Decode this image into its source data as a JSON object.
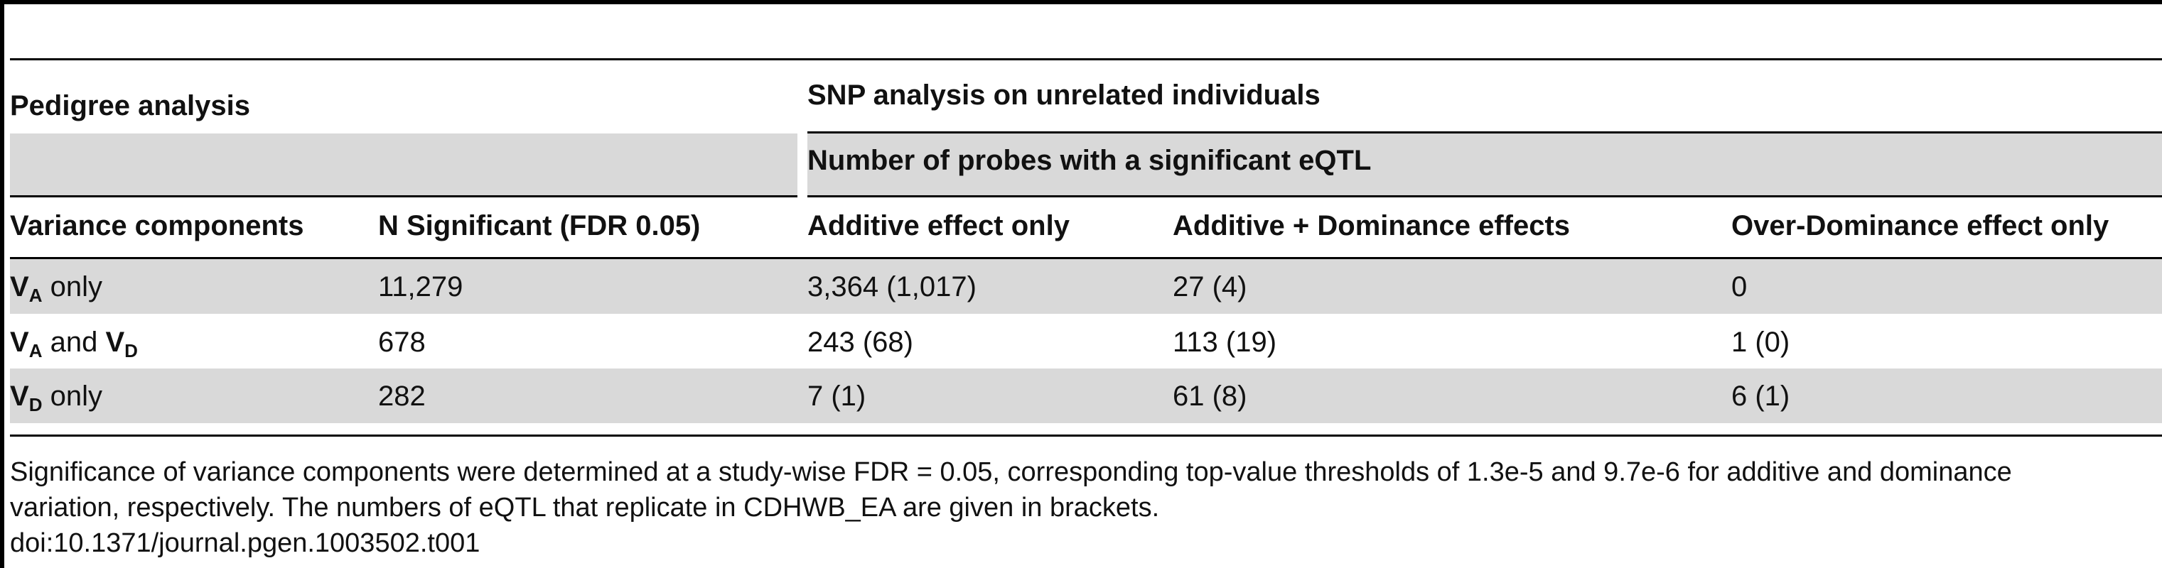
{
  "table": {
    "group_pedigree": "Pedigree analysis",
    "group_snp": "SNP analysis on unrelated individuals",
    "subgroup_snp": "Number of probes with a significant eQTL",
    "columns": [
      "Variance components",
      "N Significant (FDR 0.05)",
      "Additive effect only",
      "Additive + Dominance effects",
      "Over-Dominance effect only"
    ],
    "row_labels": [
      {
        "v1": "V",
        "s1": "A",
        "mid": " only",
        "v2": "",
        "s2": ""
      },
      {
        "v1": "V",
        "s1": "A",
        "mid": " and ",
        "v2": "V",
        "s2": "D"
      },
      {
        "v1": "V",
        "s1": "D",
        "mid": " only",
        "v2": "",
        "s2": ""
      }
    ],
    "rows": [
      [
        "11,279",
        "3,364 (1,017)",
        "27 (4)",
        "0"
      ],
      [
        "678",
        "243 (68)",
        "113 (19)",
        "1 (0)"
      ],
      [
        "282",
        "7 (1)",
        "61 (8)",
        "6 (1)"
      ]
    ]
  },
  "footnote": {
    "line1": "Significance of variance components were determined at a study-wise FDR = 0.05, corresponding top-value thresholds of 1.3e-5 and 9.7e-6 for additive and dominance",
    "line2": "variation, respectively. The numbers of eQTL that replicate in CDHWB_EA are given in brackets.",
    "doi": "doi:10.1371/journal.pgen.1003502.t001"
  }
}
